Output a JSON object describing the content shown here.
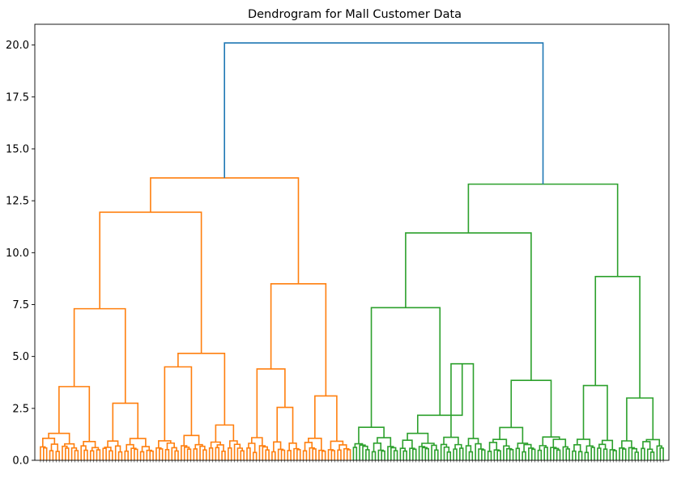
{
  "chart_data": {
    "type": "dendrogram",
    "title": "Dendrogram for Mall Customer Data",
    "xlabel": "",
    "ylabel": "",
    "ylim": [
      0,
      21
    ],
    "yticks": [
      "0.0",
      "2.5",
      "5.0",
      "7.5",
      "10.0",
      "12.5",
      "15.0",
      "17.5",
      "20.0"
    ],
    "grid": false,
    "legend": "none",
    "leaf_count": 200,
    "colors": {
      "root": "#1f77b4",
      "cluster_1": "#ff7f0e",
      "cluster_2": "#2ca02c"
    },
    "clusters": [
      {
        "color_key": "cluster_1",
        "leaf_range": [
          0,
          99
        ]
      },
      {
        "color_key": "cluster_2",
        "leaf_range": [
          100,
          199
        ]
      }
    ],
    "merges": [
      {
        "left": [
          0,
          99
        ],
        "right": [
          100,
          199
        ],
        "height": 20.1,
        "color_key": "root"
      },
      {
        "left": [
          0,
          65
        ],
        "right": [
          66,
          99
        ],
        "height": 13.6,
        "color_key": "cluster_1"
      },
      {
        "left": [
          0,
          36
        ],
        "right": [
          37,
          65
        ],
        "height": 11.95,
        "color_key": "cluster_1"
      },
      {
        "left": [
          0,
          19
        ],
        "right": [
          20,
          36
        ],
        "height": 7.3,
        "color_key": "cluster_1"
      },
      {
        "left": [
          0,
          12
        ],
        "right": [
          13,
          19
        ],
        "height": 3.55,
        "color_key": "cluster_1"
      },
      {
        "left": [
          20,
          26
        ],
        "right": [
          27,
          36
        ],
        "height": 2.75,
        "color_key": "cluster_1"
      },
      {
        "left": [
          37,
          53
        ],
        "right": [
          54,
          65
        ],
        "height": 5.15,
        "color_key": "cluster_1"
      },
      {
        "left": [
          37,
          44
        ],
        "right": [
          45,
          53
        ],
        "height": 4.5,
        "color_key": "cluster_1"
      },
      {
        "left": [
          54,
          59
        ],
        "right": [
          60,
          65
        ],
        "height": 1.7,
        "color_key": "cluster_1"
      },
      {
        "left": [
          66,
          83
        ],
        "right": [
          84,
          99
        ],
        "height": 8.5,
        "color_key": "cluster_1"
      },
      {
        "left": [
          66,
          73
        ],
        "right": [
          74,
          83
        ],
        "height": 4.4,
        "color_key": "cluster_1"
      },
      {
        "left": [
          74,
          78
        ],
        "right": [
          79,
          83
        ],
        "height": 2.55,
        "color_key": "cluster_1"
      },
      {
        "left": [
          84,
          91
        ],
        "right": [
          92,
          99
        ],
        "height": 3.1,
        "color_key": "cluster_1"
      },
      {
        "left": [
          100,
          169
        ],
        "right": [
          170,
          199
        ],
        "height": 13.3,
        "color_key": "cluster_2"
      },
      {
        "left": [
          100,
          142
        ],
        "right": [
          143,
          169
        ],
        "height": 10.95,
        "color_key": "cluster_2"
      },
      {
        "left": [
          100,
          114
        ],
        "right": [
          115,
          142
        ],
        "height": 7.35,
        "color_key": "cluster_2"
      },
      {
        "left": [
          100,
          114
        ],
        "right": [
          115,
          127
        ],
        "height": 3.1,
        "color_key": "cluster_2"
      },
      {
        "left": [
          128,
          135
        ],
        "right": [
          136,
          142
        ],
        "height": 4.65,
        "color_key": "cluster_2"
      },
      {
        "left": [
          143,
          158
        ],
        "right": [
          159,
          169
        ],
        "height": 3.85,
        "color_key": "cluster_2"
      },
      {
        "left": [
          170,
          184
        ],
        "right": [
          185,
          199
        ],
        "height": 8.85,
        "color_key": "cluster_2"
      },
      {
        "left": [
          170,
          177
        ],
        "right": [
          178,
          184
        ],
        "height": 3.6,
        "color_key": "cluster_2"
      },
      {
        "left": [
          185,
          191
        ],
        "right": [
          192,
          199
        ],
        "height": 3.0,
        "color_key": "cluster_2"
      }
    ]
  }
}
